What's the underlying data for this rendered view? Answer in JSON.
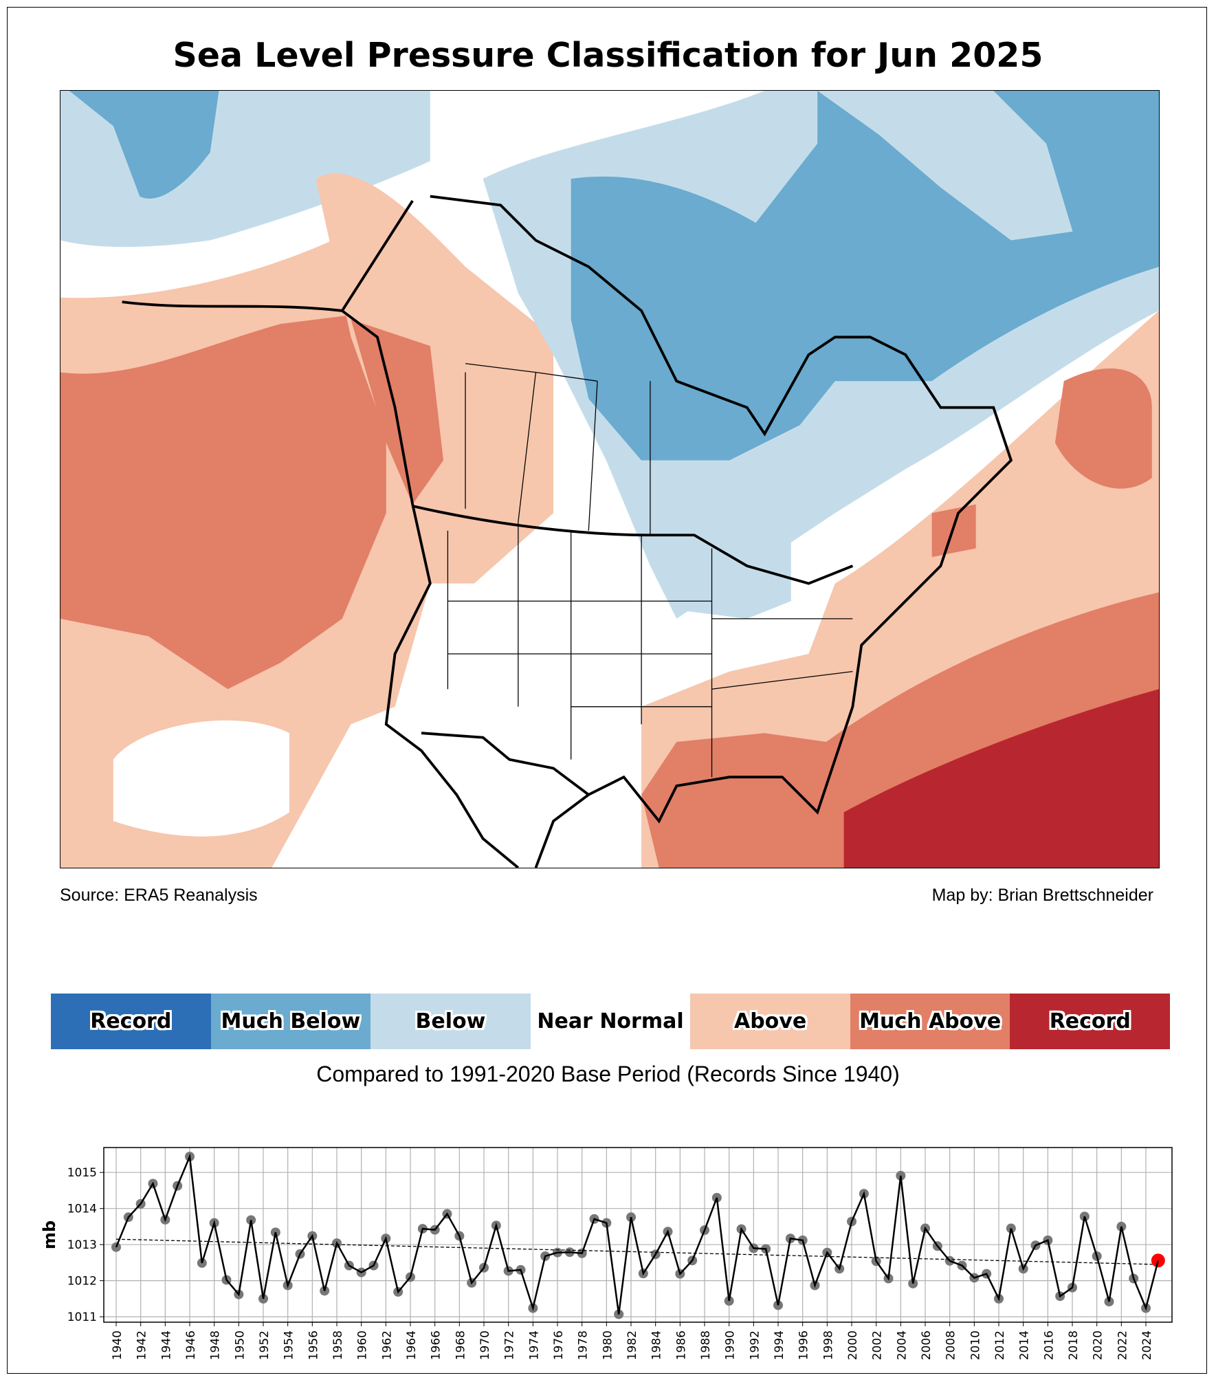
{
  "title": "Sea Level Pressure Classification for Jun 2025",
  "source": "Source: ERA5 Reanalysis",
  "credit": "Map by: Brian Brettschneider",
  "legend": [
    {
      "label": "Record",
      "color": "#2c6fb6"
    },
    {
      "label": "Much Below",
      "color": "#6aabcf"
    },
    {
      "label": "Below",
      "color": "#c4dcea"
    },
    {
      "label": "Near Normal",
      "color": "#ffffff"
    },
    {
      "label": "Above",
      "color": "#f6c6ad"
    },
    {
      "label": "Much Above",
      "color": "#e27f67"
    },
    {
      "label": "Record",
      "color": "#b8272f"
    }
  ],
  "caption": "Compared to 1991-2020 Base Period   (Records Since 1940)",
  "chart_data": {
    "type": "line",
    "ylabel": "mb",
    "xlabel": "",
    "ylim": [
      1010.85,
      1015.69
    ],
    "xlim": [
      1939.2,
      2026.0
    ],
    "yticks": [
      1011,
      1012,
      1013,
      1014,
      1015
    ],
    "xticks": [
      1940,
      1942,
      1944,
      1946,
      1948,
      1950,
      1952,
      1954,
      1956,
      1958,
      1960,
      1962,
      1964,
      1966,
      1968,
      1970,
      1972,
      1974,
      1976,
      1978,
      1980,
      1982,
      1984,
      1986,
      1988,
      1990,
      1992,
      1994,
      1996,
      1998,
      2000,
      2002,
      2004,
      2006,
      2008,
      2010,
      2012,
      2014,
      2016,
      2018,
      2020,
      2022,
      2024
    ],
    "grid": true,
    "x": [
      1940,
      1941,
      1942,
      1943,
      1944,
      1945,
      1946,
      1947,
      1948,
      1949,
      1950,
      1951,
      1952,
      1953,
      1954,
      1955,
      1956,
      1957,
      1958,
      1959,
      1960,
      1961,
      1962,
      1963,
      1964,
      1965,
      1966,
      1967,
      1968,
      1969,
      1970,
      1971,
      1972,
      1973,
      1974,
      1975,
      1976,
      1977,
      1978,
      1979,
      1980,
      1981,
      1982,
      1983,
      1984,
      1985,
      1986,
      1987,
      1988,
      1989,
      1990,
      1991,
      1992,
      1993,
      1994,
      1995,
      1996,
      1997,
      1998,
      1999,
      2000,
      2001,
      2002,
      2003,
      2004,
      2005,
      2006,
      2007,
      2008,
      2009,
      2010,
      2011,
      2012,
      2013,
      2014,
      2015,
      2016,
      2017,
      2018,
      2019,
      2020,
      2021,
      2022,
      2023,
      2024,
      2025
    ],
    "values": [
      1012.93,
      1013.76,
      1014.13,
      1014.69,
      1013.69,
      1014.63,
      1015.44,
      1012.49,
      1013.6,
      1012.02,
      1011.62,
      1013.68,
      1011.5,
      1013.34,
      1011.87,
      1012.74,
      1013.24,
      1011.72,
      1013.04,
      1012.42,
      1012.23,
      1012.42,
      1013.17,
      1011.69,
      1012.1,
      1013.44,
      1013.41,
      1013.85,
      1013.24,
      1011.94,
      1012.36,
      1013.53,
      1012.27,
      1012.3,
      1011.24,
      1012.68,
      1012.78,
      1012.79,
      1012.76,
      1013.71,
      1013.6,
      1011.07,
      1013.76,
      1012.2,
      1012.73,
      1013.36,
      1012.19,
      1012.56,
      1013.4,
      1014.3,
      1011.44,
      1013.43,
      1012.9,
      1012.88,
      1011.32,
      1013.17,
      1013.12,
      1011.87,
      1012.78,
      1012.33,
      1013.64,
      1014.41,
      1012.54,
      1012.06,
      1014.91,
      1011.92,
      1013.45,
      1012.96,
      1012.55,
      1012.42,
      1012.08,
      1012.19,
      1011.5,
      1013.45,
      1012.33,
      1012.98,
      1013.12,
      1011.57,
      1011.81,
      1013.78,
      1012.68,
      1011.42,
      1013.5,
      1012.06,
      1011.24,
      1012.56
    ],
    "trend": {
      "start": [
        1940,
        1013.15
      ],
      "end": [
        2025,
        1012.45
      ]
    },
    "highlight": {
      "year": 2025,
      "color": "#ff0000"
    },
    "point_color": "#777777",
    "line_color": "#000000"
  }
}
